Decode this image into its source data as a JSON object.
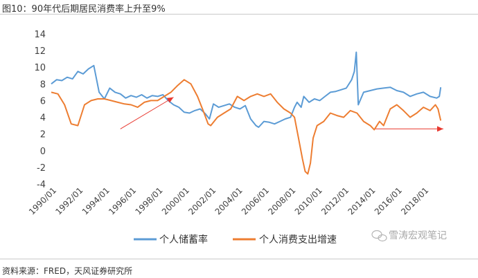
{
  "title": "图10：90年代后期居民消费率上升至9%",
  "source": "资料来源：FRED，天风证券研究所",
  "watermark": "雪涛宏观笔记",
  "chart_data": {
    "type": "line",
    "title": "图10：90年代后期居民消费率上升至9%",
    "xlabel": "",
    "ylabel": "",
    "ylim": [
      -4,
      14
    ],
    "yticks": [
      -4,
      -2,
      0,
      2,
      4,
      6,
      8,
      10,
      12,
      14
    ],
    "xlim": [
      1990.0,
      2019.5
    ],
    "xtick_labels": [
      "1990/01",
      "1992/01",
      "1994/01",
      "1996/01",
      "1998/01",
      "2000/01",
      "2002/01",
      "2004/01",
      "2006/01",
      "2008/01",
      "2010/01",
      "2012/01",
      "2014/01",
      "2016/01",
      "2018/01"
    ],
    "legend_position": "bottom",
    "grid": false,
    "series": [
      {
        "name": "个人储蓄率",
        "color": "#5b9bd5",
        "x": [
          1990.0,
          1990.4,
          1990.8,
          1991.2,
          1991.6,
          1992.0,
          1992.4,
          1992.8,
          1993.2,
          1993.6,
          1994.0,
          1994.4,
          1994.8,
          1995.2,
          1995.6,
          1996.0,
          1996.4,
          1996.8,
          1997.2,
          1997.6,
          1998.0,
          1998.4,
          1998.8,
          1999.2,
          1999.6,
          2000.0,
          2000.4,
          2000.8,
          2001.2,
          2001.6,
          2001.9,
          2002.2,
          2002.6,
          2003.0,
          2003.4,
          2003.8,
          2004.2,
          2004.6,
          2005.0,
          2005.4,
          2005.6,
          2006.0,
          2006.4,
          2006.8,
          2007.2,
          2007.6,
          2008.0,
          2008.3,
          2008.5,
          2008.8,
          2009.0,
          2009.4,
          2009.8,
          2010.2,
          2010.6,
          2011.0,
          2011.4,
          2011.8,
          2012.2,
          2012.6,
          2012.8,
          2012.95,
          2013.1,
          2013.5,
          2014.0,
          2014.5,
          2015.0,
          2015.5,
          2016.0,
          2016.5,
          2017.0,
          2017.5,
          2018.0,
          2018.5,
          2019.0,
          2019.2,
          2019.3
        ],
        "values": [
          8.0,
          8.5,
          8.4,
          8.8,
          8.6,
          9.5,
          9.2,
          9.8,
          10.2,
          7.0,
          6.2,
          7.5,
          7.0,
          6.8,
          6.3,
          6.6,
          6.4,
          6.7,
          6.3,
          6.6,
          6.5,
          6.7,
          6.0,
          5.5,
          5.2,
          4.6,
          4.5,
          4.8,
          5.0,
          4.4,
          3.8,
          5.6,
          5.2,
          5.4,
          5.6,
          5.2,
          5.0,
          5.4,
          3.8,
          3.0,
          2.8,
          3.5,
          3.4,
          3.2,
          3.5,
          3.8,
          4.0,
          5.2,
          5.8,
          5.2,
          6.5,
          5.8,
          6.2,
          6.0,
          6.5,
          7.0,
          7.1,
          7.3,
          7.5,
          8.5,
          9.5,
          11.8,
          5.5,
          7.0,
          7.2,
          7.4,
          7.5,
          7.6,
          7.2,
          7.0,
          6.5,
          6.8,
          7.0,
          6.5,
          6.3,
          6.5,
          7.6
        ]
      },
      {
        "name": "个人消费支出增速",
        "color": "#ed7d31",
        "x": [
          1990.0,
          1990.5,
          1991.0,
          1991.5,
          1992.0,
          1992.5,
          1993.0,
          1993.5,
          1994.0,
          1994.5,
          1995.0,
          1995.5,
          1996.0,
          1996.5,
          1997.0,
          1997.5,
          1998.0,
          1998.5,
          1999.0,
          1999.5,
          2000.0,
          2000.5,
          2001.0,
          2001.5,
          2001.8,
          2002.0,
          2002.5,
          2003.0,
          2003.5,
          2004.0,
          2004.5,
          2005.0,
          2005.5,
          2006.0,
          2006.5,
          2007.0,
          2007.5,
          2008.0,
          2008.3,
          2008.6,
          2008.9,
          2009.1,
          2009.3,
          2009.5,
          2009.7,
          2010.0,
          2010.5,
          2011.0,
          2011.5,
          2012.0,
          2012.5,
          2013.0,
          2013.5,
          2014.0,
          2014.3,
          2014.7,
          2015.0,
          2015.5,
          2016.0,
          2016.5,
          2017.0,
          2017.5,
          2018.0,
          2018.5,
          2018.9,
          2019.1,
          2019.3
        ],
        "values": [
          7.0,
          6.8,
          5.5,
          3.2,
          3.0,
          5.5,
          6.0,
          6.2,
          6.2,
          6.0,
          5.8,
          5.6,
          5.5,
          5.2,
          5.8,
          6.0,
          6.0,
          6.5,
          7.0,
          7.8,
          8.5,
          8.0,
          6.5,
          4.5,
          3.2,
          3.0,
          4.0,
          4.5,
          5.0,
          6.5,
          6.0,
          6.5,
          6.8,
          6.5,
          6.8,
          5.8,
          5.0,
          4.5,
          4.0,
          1.5,
          -1.0,
          -2.5,
          -2.8,
          -1.5,
          1.5,
          3.0,
          3.5,
          4.5,
          4.2,
          4.0,
          4.8,
          4.5,
          3.5,
          3.0,
          2.5,
          3.5,
          3.0,
          5.0,
          5.5,
          4.8,
          4.0,
          4.5,
          5.2,
          4.8,
          5.5,
          5.0,
          3.6
        ]
      }
    ],
    "annotations": [
      {
        "type": "arrow",
        "from": [
          1995.2,
          2.6
        ],
        "to": [
          1999.2,
          6.4
        ],
        "color": "#e8382f"
      },
      {
        "type": "arrow",
        "from": [
          2014.4,
          2.6
        ],
        "to": [
          2019.5,
          2.6
        ],
        "color": "#e8382f"
      }
    ]
  }
}
